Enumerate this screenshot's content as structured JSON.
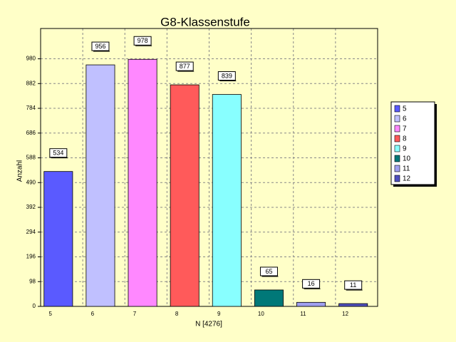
{
  "chart_data": {
    "type": "bar",
    "title": "G8-Klassenstufe",
    "x_label": "N [4276]",
    "y_label": "Anzahl",
    "categories": [
      "5",
      "6",
      "7",
      "8",
      "9",
      "10",
      "11",
      "12"
    ],
    "values": [
      534,
      956,
      978,
      877,
      839,
      65,
      16,
      11
    ],
    "colors": [
      "#5a5aff",
      "#c0c0ff",
      "#ff88ff",
      "#ff5a5a",
      "#88ffff",
      "#007878",
      "#a0a0f0",
      "#5050c0"
    ],
    "ylim": [
      0,
      1100
    ],
    "yticks": [
      0,
      98,
      196,
      294,
      392,
      490,
      588,
      686,
      784,
      882,
      980
    ],
    "grid": true,
    "legend": "right"
  }
}
